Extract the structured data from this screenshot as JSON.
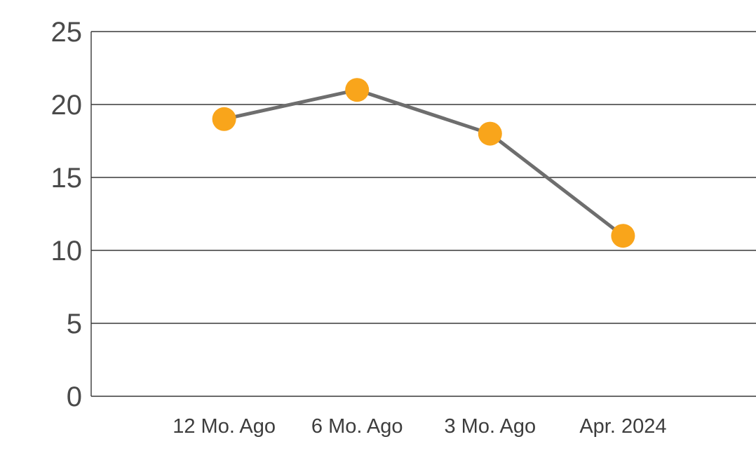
{
  "chart_data": {
    "type": "line",
    "title": "",
    "xlabel": "",
    "ylabel": "",
    "categories": [
      "12 Mo. Ago",
      "6 Mo. Ago",
      "3 Mo. Ago",
      "Apr. 2024"
    ],
    "values": [
      19,
      21,
      18,
      11
    ],
    "ylim": [
      0,
      25
    ],
    "yticks": [
      0,
      5,
      10,
      15,
      20,
      25
    ],
    "grid": true,
    "legend": "none",
    "colors": {
      "line": "#6e6e6e",
      "marker": "#f9a51b",
      "grid": "#383838",
      "axis": "#383838",
      "background": "#ffffff"
    }
  }
}
